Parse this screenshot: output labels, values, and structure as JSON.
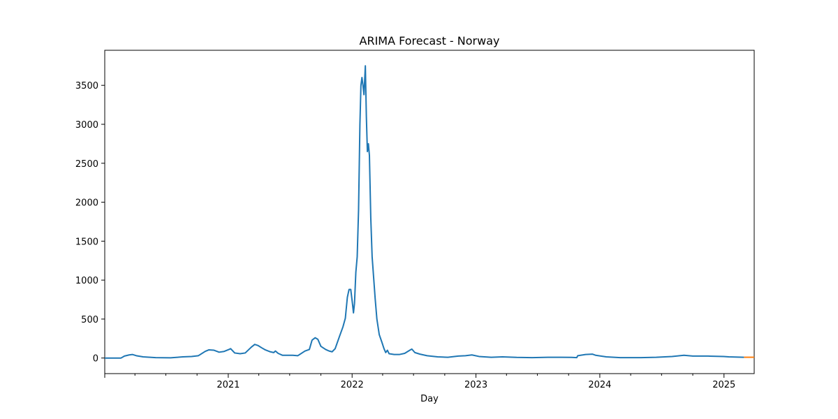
{
  "chart_data": {
    "type": "line",
    "title": "ARIMA Forecast - Norway",
    "xlabel": "Day",
    "ylabel": "",
    "xlim": [
      "2020-01-03",
      "2025-03-31"
    ],
    "ylim": [
      -200,
      3950
    ],
    "x_ticks": [
      "2021",
      "2022",
      "2023",
      "2024",
      "2025"
    ],
    "y_ticks": [
      0,
      500,
      1000,
      1500,
      2000,
      2500,
      3000,
      3500
    ],
    "grid": false,
    "legend": "none",
    "series": [
      {
        "color": "#1f77b4",
        "points": [
          [
            "2020-01-03",
            0
          ],
          [
            "2020-02-20",
            0
          ],
          [
            "2020-03-01",
            25
          ],
          [
            "2020-03-15",
            40
          ],
          [
            "2020-03-25",
            45
          ],
          [
            "2020-04-05",
            30
          ],
          [
            "2020-04-25",
            15
          ],
          [
            "2020-06-01",
            5
          ],
          [
            "2020-07-15",
            3
          ],
          [
            "2020-08-01",
            8
          ],
          [
            "2020-08-20",
            15
          ],
          [
            "2020-09-15",
            20
          ],
          [
            "2020-10-05",
            30
          ],
          [
            "2020-10-25",
            85
          ],
          [
            "2020-11-05",
            105
          ],
          [
            "2020-11-20",
            100
          ],
          [
            "2020-12-05",
            75
          ],
          [
            "2020-12-20",
            85
          ],
          [
            "2021-01-03",
            110
          ],
          [
            "2021-01-08",
            120
          ],
          [
            "2021-01-20",
            65
          ],
          [
            "2021-02-05",
            55
          ],
          [
            "2021-02-20",
            65
          ],
          [
            "2021-03-10",
            140
          ],
          [
            "2021-03-20",
            175
          ],
          [
            "2021-03-30",
            160
          ],
          [
            "2021-04-10",
            130
          ],
          [
            "2021-04-20",
            105
          ],
          [
            "2021-05-05",
            80
          ],
          [
            "2021-05-15",
            70
          ],
          [
            "2021-05-20",
            90
          ],
          [
            "2021-05-28",
            60
          ],
          [
            "2021-06-10",
            35
          ],
          [
            "2021-07-10",
            35
          ],
          [
            "2021-07-25",
            30
          ],
          [
            "2021-08-15",
            90
          ],
          [
            "2021-08-28",
            110
          ],
          [
            "2021-09-05",
            230
          ],
          [
            "2021-09-14",
            260
          ],
          [
            "2021-09-22",
            240
          ],
          [
            "2021-10-01",
            150
          ],
          [
            "2021-10-15",
            110
          ],
          [
            "2021-10-25",
            90
          ],
          [
            "2021-11-03",
            80
          ],
          [
            "2021-11-12",
            120
          ],
          [
            "2021-11-25",
            280
          ],
          [
            "2021-12-05",
            400
          ],
          [
            "2021-12-12",
            510
          ],
          [
            "2021-12-18",
            780
          ],
          [
            "2021-12-23",
            880
          ],
          [
            "2021-12-28",
            880
          ],
          [
            "2022-01-02",
            700
          ],
          [
            "2022-01-05",
            580
          ],
          [
            "2022-01-08",
            700
          ],
          [
            "2022-01-12",
            1100
          ],
          [
            "2022-01-16",
            1300
          ],
          [
            "2022-01-20",
            1900
          ],
          [
            "2022-01-24",
            3000
          ],
          [
            "2022-01-27",
            3500
          ],
          [
            "2022-01-30",
            3600
          ],
          [
            "2022-02-02",
            3500
          ],
          [
            "2022-02-05",
            3380
          ],
          [
            "2022-02-09",
            3750
          ],
          [
            "2022-02-12",
            3100
          ],
          [
            "2022-02-15",
            2650
          ],
          [
            "2022-02-18",
            2750
          ],
          [
            "2022-02-21",
            2600
          ],
          [
            "2022-02-25",
            1800
          ],
          [
            "2022-03-01",
            1300
          ],
          [
            "2022-03-06",
            1000
          ],
          [
            "2022-03-10",
            760
          ],
          [
            "2022-03-15",
            500
          ],
          [
            "2022-03-22",
            300
          ],
          [
            "2022-03-30",
            200
          ],
          [
            "2022-04-05",
            120
          ],
          [
            "2022-04-10",
            70
          ],
          [
            "2022-04-15",
            100
          ],
          [
            "2022-04-20",
            55
          ],
          [
            "2022-05-05",
            45
          ],
          [
            "2022-05-20",
            45
          ],
          [
            "2022-06-05",
            60
          ],
          [
            "2022-06-20",
            100
          ],
          [
            "2022-06-26",
            115
          ],
          [
            "2022-07-05",
            70
          ],
          [
            "2022-07-20",
            50
          ],
          [
            "2022-08-10",
            30
          ],
          [
            "2022-09-10",
            15
          ],
          [
            "2022-10-10",
            10
          ],
          [
            "2022-11-10",
            25
          ],
          [
            "2022-12-01",
            30
          ],
          [
            "2022-12-20",
            40
          ],
          [
            "2023-01-10",
            20
          ],
          [
            "2023-02-15",
            10
          ],
          [
            "2023-03-20",
            15
          ],
          [
            "2023-05-01",
            8
          ],
          [
            "2023-06-15",
            5
          ],
          [
            "2023-08-01",
            10
          ],
          [
            "2023-09-10",
            10
          ],
          [
            "2023-10-10",
            8
          ],
          [
            "2023-10-25",
            5
          ],
          [
            "2023-10-28",
            30
          ],
          [
            "2023-11-20",
            45
          ],
          [
            "2023-12-10",
            50
          ],
          [
            "2023-12-20",
            35
          ],
          [
            "2024-01-20",
            15
          ],
          [
            "2024-03-01",
            5
          ],
          [
            "2024-05-01",
            5
          ],
          [
            "2024-06-15",
            10
          ],
          [
            "2024-08-01",
            20
          ],
          [
            "2024-09-05",
            35
          ],
          [
            "2024-10-01",
            25
          ],
          [
            "2024-11-15",
            25
          ],
          [
            "2024-12-31",
            20
          ],
          [
            "2025-01-15",
            15
          ],
          [
            "2025-03-01",
            10
          ]
        ]
      },
      {
        "color": "#ff7f0e",
        "points": [
          [
            "2025-03-01",
            10
          ],
          [
            "2025-03-31",
            10
          ]
        ]
      }
    ]
  }
}
